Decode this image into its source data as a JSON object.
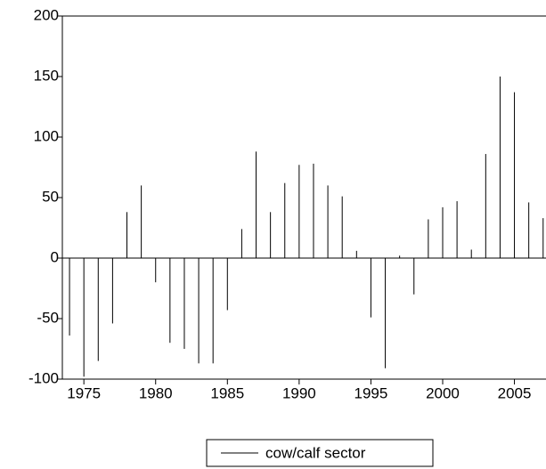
{
  "chart_data": {
    "type": "spike",
    "x": [
      1974,
      1975,
      1976,
      1977,
      1978,
      1979,
      1980,
      1981,
      1982,
      1983,
      1984,
      1985,
      1986,
      1987,
      1988,
      1989,
      1990,
      1991,
      1992,
      1993,
      1994,
      1995,
      1996,
      1997,
      1998,
      1999,
      2000,
      2001,
      2002,
      2003,
      2004,
      2005,
      2006,
      2007
    ],
    "series": [
      {
        "name": "cow/calf sector",
        "color": "#000000",
        "values": [
          -64,
          -98,
          -85,
          -54,
          38,
          60,
          -20,
          -70,
          -75,
          -87,
          -87,
          -43,
          24,
          88,
          38,
          62,
          77,
          78,
          60,
          51,
          6,
          -49,
          -91,
          2,
          -30,
          32,
          42,
          47,
          7,
          86,
          150,
          137,
          46,
          33
        ]
      }
    ],
    "xlim": [
      1973.5,
      2007.2
    ],
    "xticks": [
      1975,
      1980,
      1985,
      1990,
      1995,
      2000,
      2005
    ],
    "ylim": [
      -100,
      200
    ],
    "yticks": [
      -100,
      -50,
      0,
      50,
      100,
      150,
      200
    ]
  }
}
